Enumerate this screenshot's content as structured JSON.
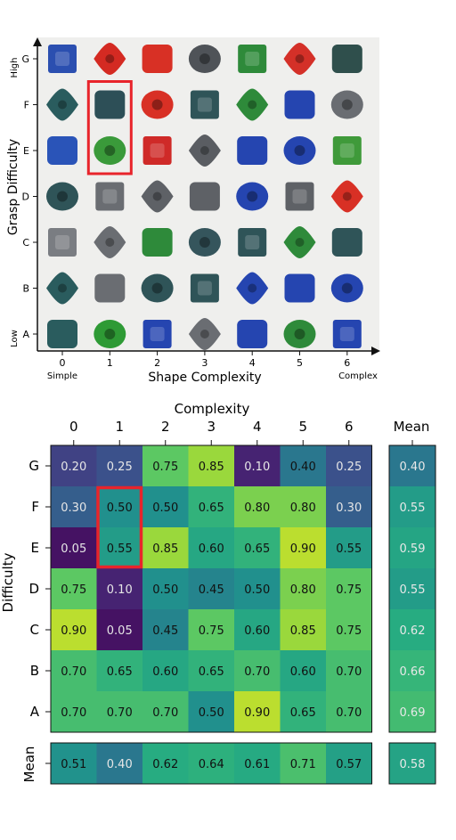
{
  "colors": {
    "highlight": "#e8242b",
    "photo_background": "#efefed"
  },
  "object_grid": {
    "x_axis_label": "Shape Complexity",
    "y_axis_label": "Grasp Difficulty",
    "x_ticks": [
      "0",
      "1",
      "2",
      "3",
      "4",
      "5",
      "6"
    ],
    "y_ticks": [
      "A",
      "B",
      "C",
      "D",
      "E",
      "F",
      "G"
    ],
    "x_low_label": "Simple",
    "x_high_label": "Complex",
    "y_low_label": "Low",
    "y_high_label": "High",
    "highlighted_cells": [
      {
        "complexity": 1,
        "difficulty": "F"
      },
      {
        "complexity": 1,
        "difficulty": "E"
      }
    ],
    "object_colors": {
      "G": [
        "#2b4fb0",
        "#d42a22",
        "#d83025",
        "#4f5358",
        "#2e8a3a",
        "#d43028",
        "#2f4f4c"
      ],
      "F": [
        "#2a5c5e",
        "#2d4f57",
        "#d83025",
        "#2f5458",
        "#2e8a3a",
        "#2545b0",
        "#6a6d72"
      ],
      "E": [
        "#2a54b8",
        "#3a9a3a",
        "#cf2a28",
        "#5a5d62",
        "#2545b0",
        "#2545b0",
        "#3f9a3a"
      ],
      "D": [
        "#2f5458",
        "#6a6d72",
        "#5e6166",
        "#5e6166",
        "#2545b0",
        "#5e6166",
        "#d83025"
      ],
      "C": [
        "#7a7d82",
        "#6a6d72",
        "#2e8a3a",
        "#35555c",
        "#2f5458",
        "#2e8a3a",
        "#2f5458"
      ],
      "B": [
        "#2a5c5e",
        "#6a6d72",
        "#2f5458",
        "#2f5458",
        "#2545b0",
        "#2545b0",
        "#2545b0"
      ],
      "A": [
        "#2a5c5e",
        "#2e9a35",
        "#2545b0",
        "#6a6d72",
        "#2545b0",
        "#2e8a3a",
        "#2545b0"
      ]
    }
  },
  "chart_data": {
    "type": "heatmap",
    "title": "Complexity",
    "ylabel": "Difficulty",
    "columns": [
      "0",
      "1",
      "2",
      "3",
      "4",
      "5",
      "6"
    ],
    "rows": [
      "G",
      "F",
      "E",
      "D",
      "C",
      "B",
      "A"
    ],
    "values": [
      [
        0.2,
        0.25,
        0.75,
        0.85,
        0.1,
        0.4,
        0.25
      ],
      [
        0.3,
        0.5,
        0.5,
        0.65,
        0.8,
        0.8,
        0.3
      ],
      [
        0.05,
        0.55,
        0.85,
        0.6,
        0.65,
        0.9,
        0.55
      ],
      [
        0.75,
        0.1,
        0.5,
        0.45,
        0.5,
        0.8,
        0.75
      ],
      [
        0.9,
        0.05,
        0.45,
        0.75,
        0.6,
        0.85,
        0.75
      ],
      [
        0.7,
        0.65,
        0.6,
        0.65,
        0.7,
        0.6,
        0.7
      ],
      [
        0.7,
        0.7,
        0.7,
        0.5,
        0.9,
        0.65,
        0.7
      ]
    ],
    "row_means_label": "Mean",
    "row_means": [
      0.4,
      0.55,
      0.59,
      0.55,
      0.62,
      0.66,
      0.69
    ],
    "column_means_label": "Mean",
    "column_means": [
      0.51,
      0.4,
      0.62,
      0.64,
      0.61,
      0.71,
      0.57
    ],
    "overall_mean": 0.58,
    "colormap": "viridis",
    "value_range": [
      0.0,
      1.0
    ],
    "highlighted_cells": [
      {
        "row": "F",
        "column": "1"
      },
      {
        "row": "E",
        "column": "1"
      }
    ]
  }
}
